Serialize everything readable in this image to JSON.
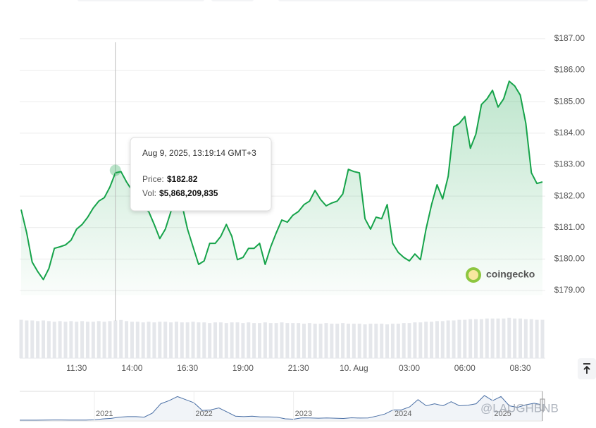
{
  "chart_data": {
    "type": "line",
    "categories": [
      null,
      null,
      null,
      null,
      null,
      null,
      null,
      null,
      null,
      null,
      "11:30",
      null,
      null,
      null,
      null,
      null,
      null,
      null,
      null,
      null,
      "14:00",
      null,
      null,
      null,
      null,
      null,
      null,
      null,
      null,
      null,
      "16:30",
      null,
      null,
      null,
      null,
      null,
      null,
      null,
      null,
      null,
      "19:00",
      null,
      null,
      null,
      null,
      null,
      null,
      null,
      null,
      null,
      "21:30",
      null,
      null,
      null,
      null,
      null,
      null,
      null,
      null,
      null,
      "10. Aug",
      null,
      null,
      null,
      null,
      null,
      null,
      null,
      null,
      null,
      "03:00",
      null,
      null,
      null,
      null,
      null,
      null,
      null,
      null,
      null,
      "06:00",
      null,
      null,
      null,
      null,
      null,
      null,
      null,
      null,
      null,
      "08:30",
      null,
      null,
      null,
      null
    ],
    "series": [
      {
        "name": "Price:",
        "color": "#16a34a",
        "values": [
          181.57,
          180.83,
          179.9,
          179.6,
          179.35,
          179.7,
          180.34,
          180.39,
          180.45,
          180.6,
          180.95,
          181.1,
          181.33,
          181.62,
          181.84,
          181.95,
          182.29,
          182.74,
          182.78,
          182.45,
          182.18,
          181.84,
          181.62,
          181.51,
          181.1,
          180.65,
          180.95,
          181.51,
          182.07,
          181.73,
          180.95,
          180.39,
          179.83,
          179.94,
          180.5,
          180.5,
          180.72,
          181.1,
          180.72,
          179.98,
          180.05,
          180.34,
          180.34,
          180.5,
          179.83,
          180.39,
          180.83,
          181.24,
          181.17,
          181.39,
          181.51,
          181.73,
          181.84,
          182.18,
          181.89,
          181.69,
          181.78,
          181.84,
          182.07,
          182.85,
          182.78,
          182.74,
          181.28,
          180.95,
          181.33,
          181.28,
          181.73,
          180.5,
          180.21,
          180.05,
          179.94,
          180.16,
          179.98,
          180.95,
          181.73,
          182.36,
          181.91,
          182.63,
          184.2,
          184.31,
          184.53,
          183.52,
          183.97,
          184.91,
          185.09,
          185.36,
          184.83,
          185.09,
          185.65,
          185.5,
          185.21,
          184.31,
          182.74,
          182.4,
          182.45
        ]
      },
      {
        "name": "Vol:",
        "color": "#e5e7eb",
        "axis": "y2",
        "values": [
          5900000000.0,
          5800000000.0,
          5800000000.0,
          5700000000.0,
          5800000000.0,
          5700000000.0,
          5600000000.0,
          5700000000.0,
          5600000000.0,
          5700000000.0,
          5600000000.0,
          5700000000.0,
          5600000000.0,
          5600000000.0,
          5700000000.0,
          5600000000.0,
          5700000000.0,
          5800000000.0,
          5870000000.0,
          5700000000.0,
          5600000000.0,
          5600000000.0,
          5500000000.0,
          5600000000.0,
          5500000000.0,
          5600000000.0,
          5600000000.0,
          5500000000.0,
          5600000000.0,
          5500000000.0,
          5500000000.0,
          5600000000.0,
          5500000000.0,
          5500000000.0,
          5400000000.0,
          5500000000.0,
          5500000000.0,
          5400000000.0,
          5500000000.0,
          5500000000.0,
          5400000000.0,
          5500000000.0,
          5400000000.0,
          5400000000.0,
          5500000000.0,
          5400000000.0,
          5400000000.0,
          5500000000.0,
          5400000000.0,
          5400000000.0,
          5400000000.0,
          5300000000.0,
          5400000000.0,
          5300000000.0,
          5300000000.0,
          5400000000.0,
          5300000000.0,
          5300000000.0,
          5400000000.0,
          5300000000.0,
          5300000000.0,
          5300000000.0,
          5200000000.0,
          5300000000.0,
          5300000000.0,
          5300000000.0,
          5200000000.0,
          5300000000.0,
          5300000000.0,
          5400000000.0,
          5400000000.0,
          5500000000.0,
          5500000000.0,
          5600000000.0,
          5600000000.0,
          5700000000.0,
          5700000000.0,
          5800000000.0,
          5800000000.0,
          5900000000.0,
          5900000000.0,
          6000000000.0,
          6000000000.0,
          6000000000.0,
          6100000000.0,
          6100000000.0,
          6100000000.0,
          6100000000.0,
          6200000000.0,
          6100000000.0,
          6100000000.0,
          6000000000.0,
          6000000000.0,
          5900000000.0,
          5900000000.0
        ]
      }
    ],
    "ylim": [
      178.85,
      187.2
    ],
    "yticks": [
      {
        "value": 179,
        "label": "$179.00"
      },
      {
        "value": 180,
        "label": "$180.00"
      },
      {
        "value": 181,
        "label": "$181.00"
      },
      {
        "value": 182,
        "label": "$182.00"
      },
      {
        "value": 183,
        "label": "$183.00"
      },
      {
        "value": 184,
        "label": "$184.00"
      },
      {
        "value": 185,
        "label": "$185.00"
      },
      {
        "value": 186,
        "label": "$186.00"
      },
      {
        "value": 187,
        "label": "$187.00"
      }
    ],
    "y2lim": [
      0,
      6500000000.0
    ],
    "grid": true,
    "tooltip": {
      "date": "Aug 9, 2025, 13:19:14 GMT+3",
      "items": [
        {
          "name": "Price:",
          "value": 182.82,
          "value_label": "$182.82"
        },
        {
          "name": "Vol:",
          "value": 5868209835,
          "value_label": "$5,868,209,835"
        }
      ]
    },
    "navigator": {
      "color": "#4a6fa5",
      "categories": [
        null,
        null,
        null,
        null,
        null,
        null,
        null,
        null,
        null,
        "2021",
        null,
        null,
        null,
        null,
        null,
        null,
        null,
        null,
        null,
        null,
        null,
        "2022",
        null,
        null,
        null,
        null,
        null,
        null,
        null,
        null,
        null,
        null,
        null,
        "2023",
        null,
        null,
        null,
        null,
        null,
        null,
        null,
        null,
        null,
        null,
        null,
        "2024",
        null,
        null,
        null,
        null,
        null,
        null,
        null,
        null,
        null,
        null,
        null,
        "2025",
        null,
        null,
        null,
        null,
        null,
        null
      ],
      "values": [
        0.7,
        0.6,
        0.8,
        1.5,
        3,
        3,
        2,
        2,
        1.8,
        4,
        13,
        18,
        30,
        35,
        35,
        30,
        70,
        160,
        190,
        230,
        200,
        170,
        95,
        100,
        120,
        80,
        40,
        35,
        40,
        33,
        32,
        30,
        14,
        10,
        23,
        22,
        20,
        22,
        20,
        17,
        24,
        21,
        22,
        40,
        60,
        100,
        100,
        130,
        200,
        140,
        160,
        140,
        180,
        140,
        145,
        160,
        240,
        190,
        230,
        140,
        125,
        150,
        165,
        150
      ],
      "ylim": [
        0,
        260
      ]
    },
    "watermark": "coingecko",
    "credit": "@LAUGHBNB"
  }
}
